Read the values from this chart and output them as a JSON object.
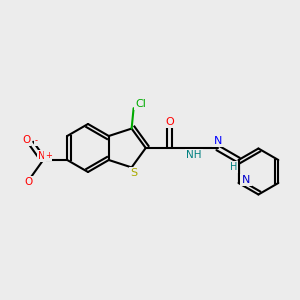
{
  "background_color": "#ececec",
  "bond_color": "#000000",
  "bond_width": 1.5,
  "atom_colors": {
    "Cl": "#00aa00",
    "S": "#aaaa00",
    "N": "#0000ff",
    "O": "#ff0000",
    "NO_N": "#ff0000",
    "NO_O": "#ff0000",
    "H": "#008080",
    "C": "#000000",
    "N_pyridine": "#0000cc"
  }
}
